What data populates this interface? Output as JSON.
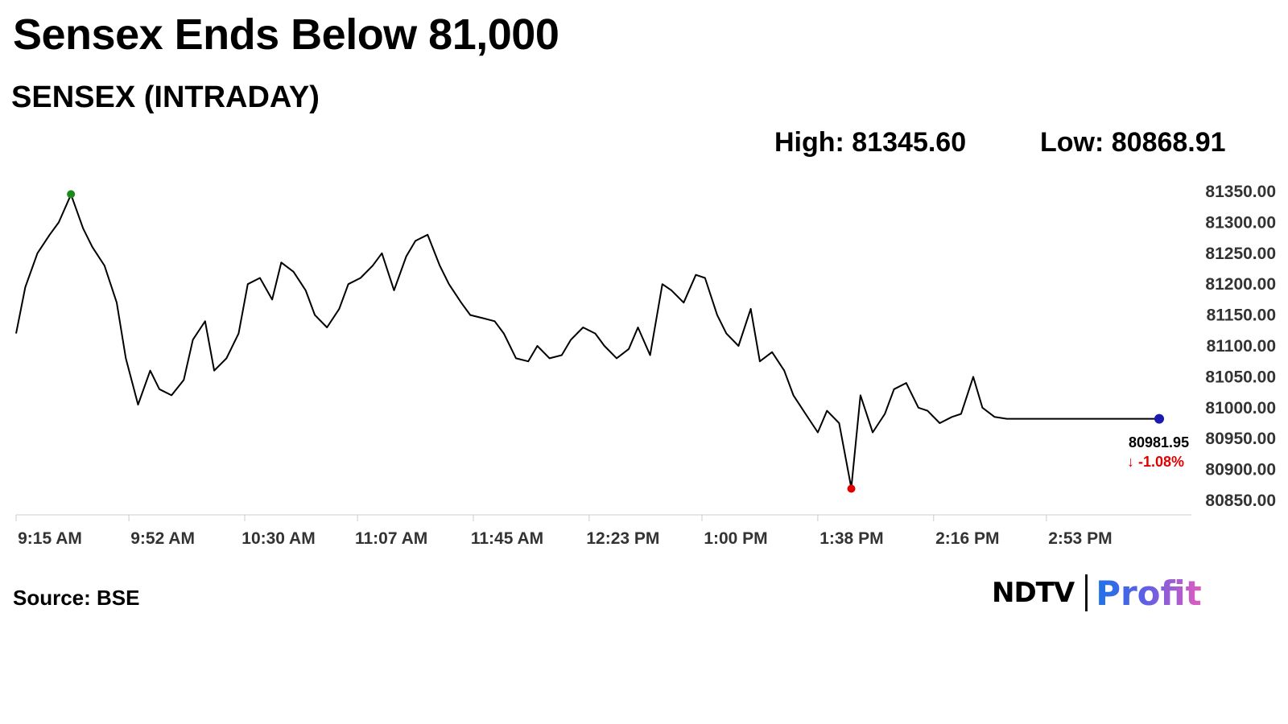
{
  "headline": "Sensex Ends Below 81,000",
  "subtitle": "SENSEX (INTRADAY)",
  "stats": {
    "high_label": "High: 81345.60",
    "low_label": "Low: 80868.91"
  },
  "source": "Source: BSE",
  "logo": {
    "left": "NDTV",
    "right": "Profit"
  },
  "colors": {
    "line": "#000000",
    "high_marker": "#1a8a1a",
    "low_marker": "#e00000",
    "last_marker": "#1a1ab0",
    "change": "#e00000"
  },
  "last": {
    "value_label": "80981.95",
    "change_label": "↓ -1.08%"
  },
  "chart_data": {
    "type": "line",
    "title": "SENSEX (INTRADAY)",
    "xlabel": "",
    "ylabel": "",
    "ylim": [
      80850,
      81350
    ],
    "y_ticks": [
      "81350.00",
      "81300.00",
      "81250.00",
      "81200.00",
      "81150.00",
      "81100.00",
      "81050.00",
      "81000.00",
      "80950.00",
      "80900.00",
      "80850.00"
    ],
    "x_ticks": [
      "9:15 AM",
      "9:52 AM",
      "10:30 AM",
      "11:07 AM",
      "11:45 AM",
      "12:23 PM",
      "1:00 PM",
      "1:38 PM",
      "2:16 PM",
      "2:53 PM"
    ],
    "x_range": [
      "9:15 AM",
      "3:30 PM"
    ],
    "grid": false,
    "high": 81345.6,
    "low": 80868.91,
    "last": 80981.95,
    "change_pct": -1.08,
    "series": [
      {
        "x": [
          "9:15 AM",
          "9:18 AM",
          "9:22 AM",
          "9:26 AM",
          "9:29 AM",
          "9:33 AM",
          "9:37 AM",
          "9:40 AM",
          "9:44 AM",
          "9:48 AM",
          "9:51 AM",
          "9:55 AM",
          "9:59 AM",
          "10:02 AM",
          "10:06 AM",
          "10:10 AM",
          "10:13 AM",
          "10:17 AM",
          "10:20 AM",
          "10:24 AM",
          "10:28 AM",
          "10:31 AM",
          "10:35 AM",
          "10:39 AM",
          "10:42 AM",
          "10:46 AM",
          "10:50 AM",
          "10:53 AM",
          "10:57 AM",
          "11:01 AM",
          "11:04 AM",
          "11:08 AM",
          "11:12 AM",
          "11:15 AM",
          "11:19 AM",
          "11:23 AM",
          "11:26 AM",
          "11:30 AM",
          "11:34 AM",
          "11:37 AM",
          "11:41 AM",
          "11:44 AM",
          "11:48 AM",
          "11:52 AM",
          "11:55 AM",
          "11:59 AM",
          "12:03 PM",
          "12:06 PM",
          "12:10 PM",
          "12:14 PM",
          "12:17 PM",
          "12:21 PM",
          "12:25 PM",
          "12:28 PM",
          "12:32 PM",
          "12:36 PM",
          "12:39 PM",
          "12:43 PM",
          "12:47 PM",
          "12:50 PM",
          "12:54 PM",
          "12:58 PM",
          "1:01 PM",
          "1:05 PM",
          "1:08 PM",
          "1:12 PM",
          "1:16 PM",
          "1:19 PM",
          "1:23 PM",
          "1:27 PM",
          "1:30 PM",
          "1:34 PM",
          "1:38 PM",
          "1:41 PM",
          "1:45 PM",
          "1:49 PM",
          "1:52 PM",
          "1:56 PM",
          "2:00 PM",
          "2:03 PM",
          "2:07 PM",
          "2:11 PM",
          "2:14 PM",
          "2:18 PM",
          "2:22 PM",
          "2:25 PM",
          "2:29 PM",
          "2:32 PM",
          "2:36 PM",
          "2:40 PM",
          "2:43 PM",
          "2:47 PM",
          "2:51 PM",
          "2:54 PM",
          "2:58 PM",
          "3:02 PM",
          "3:05 PM",
          "3:09 PM",
          "3:13 PM",
          "3:16 PM",
          "3:20 PM",
          "3:24 PM",
          "3:27 PM",
          "3:30 PM"
        ],
        "y": [
          81120,
          81195,
          81250,
          81280,
          81300,
          81345,
          81290,
          81260,
          81230,
          81170,
          81080,
          81005,
          81060,
          81030,
          81020,
          81045,
          81110,
          81140,
          81060,
          81080,
          81120,
          81200,
          81210,
          81175,
          81235,
          81220,
          81190,
          81150,
          81130,
          81160,
          81200,
          81210,
          81230,
          81250,
          81190,
          81245,
          81270,
          81280,
          81230,
          81200,
          81170,
          81150,
          81145,
          81140,
          81120,
          81080,
          81075,
          81100,
          81080,
          81085,
          81110,
          81130,
          81120,
          81100,
          81080,
          81095,
          81130,
          81085,
          81200,
          81190,
          81170,
          81215,
          81210,
          81150,
          81120,
          81100,
          81160,
          81075,
          81090,
          81060,
          81020,
          80990,
          80960,
          80995,
          80975,
          80870,
          81020,
          80960,
          80990,
          81030,
          81040,
          81000,
          80995,
          80975,
          80985,
          80990,
          81050,
          81000,
          80985,
          80982,
          80982,
          80982,
          80982,
          80982,
          80982,
          80982,
          80982,
          80982,
          80982,
          80982,
          80982,
          80982,
          80982,
          80982
        ]
      }
    ]
  }
}
